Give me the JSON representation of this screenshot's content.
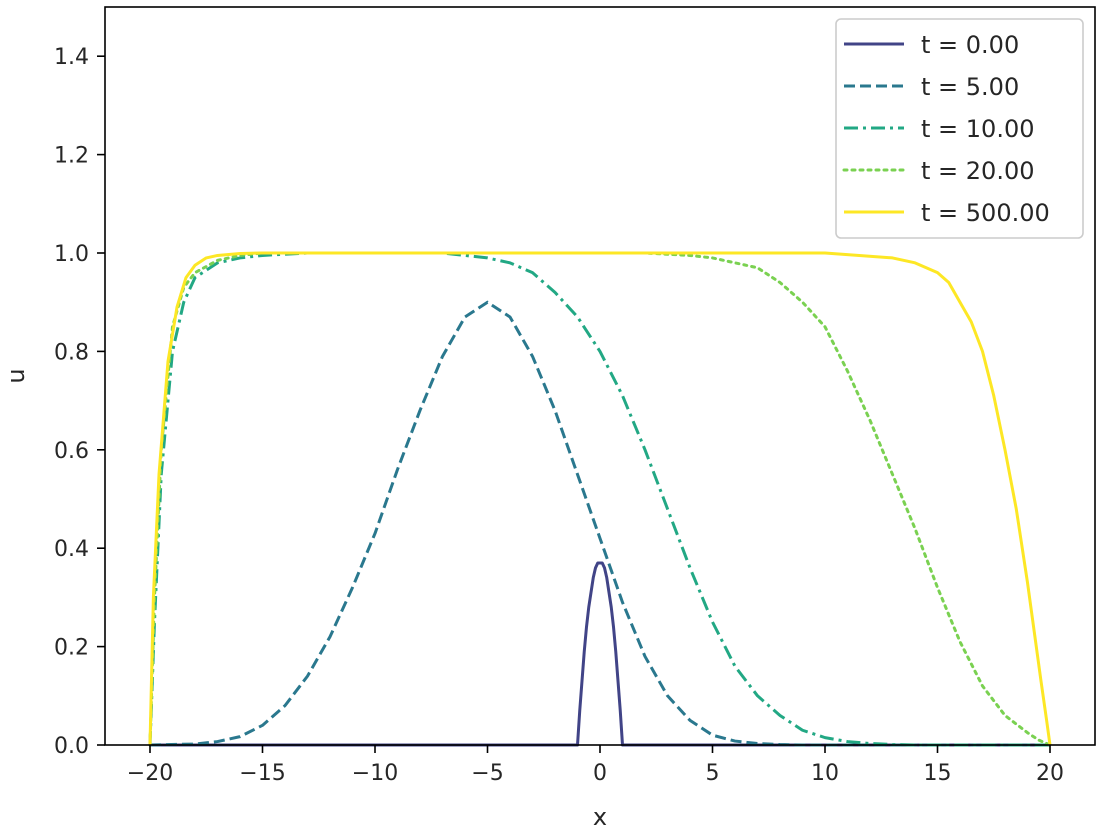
{
  "chart_data": {
    "type": "line",
    "xlabel": "x",
    "ylabel": "u",
    "xlim": [
      -22.0,
      22.0
    ],
    "ylim": [
      0.0,
      1.5
    ],
    "xticks": [
      -20,
      -15,
      -10,
      -5,
      0,
      5,
      10,
      15,
      20
    ],
    "xtick_labels": [
      "−20",
      "−15",
      "−10",
      "−5",
      "0",
      "5",
      "10",
      "15",
      "20"
    ],
    "yticks": [
      0.0,
      0.2,
      0.4,
      0.6,
      0.8,
      1.0,
      1.2,
      1.4
    ],
    "ytick_labels": [
      "0.0",
      "0.2",
      "0.4",
      "0.6",
      "0.8",
      "1.0",
      "1.2",
      "1.4"
    ],
    "grid": false,
    "legend_position": "top-right",
    "series": [
      {
        "name": "t = 0.00",
        "color": "#414487",
        "dash": "solid",
        "x": [
          -20,
          -1.0,
          -0.9,
          -0.8,
          -0.7,
          -0.6,
          -0.5,
          -0.4,
          -0.3,
          -0.2,
          -0.1,
          0.0,
          0.1,
          0.2,
          0.3,
          0.4,
          0.5,
          0.6,
          0.7,
          0.8,
          0.9,
          1.0,
          20
        ],
        "y": [
          0.0,
          0.0,
          0.07,
          0.13,
          0.19,
          0.24,
          0.28,
          0.31,
          0.34,
          0.36,
          0.37,
          0.37,
          0.37,
          0.36,
          0.34,
          0.31,
          0.28,
          0.24,
          0.19,
          0.13,
          0.07,
          0.0,
          0.0
        ]
      },
      {
        "name": "t = 5.00",
        "color": "#2a788e",
        "dash": "dashed",
        "x": [
          -20,
          -18,
          -17,
          -16,
          -15,
          -14,
          -13,
          -12,
          -11,
          -10,
          -9,
          -8,
          -7,
          -6,
          -5,
          -4,
          -3,
          -2,
          -1,
          0,
          1,
          2,
          3,
          4,
          5,
          6,
          7,
          8,
          9,
          10,
          20
        ],
        "y": [
          0.0,
          0.002,
          0.007,
          0.017,
          0.04,
          0.08,
          0.14,
          0.22,
          0.32,
          0.43,
          0.56,
          0.68,
          0.79,
          0.87,
          0.9,
          0.87,
          0.79,
          0.68,
          0.55,
          0.42,
          0.29,
          0.18,
          0.1,
          0.05,
          0.02,
          0.008,
          0.003,
          0.001,
          0.0,
          0.0,
          0.0
        ]
      },
      {
        "name": "t = 10.00",
        "color": "#22a884",
        "dash": "dashdot",
        "x": [
          -20,
          -19.8,
          -19.5,
          -19,
          -18.5,
          -18,
          -17,
          -16,
          -15,
          -13,
          -10,
          -7,
          -5,
          -4,
          -3,
          -2,
          -1,
          0,
          1,
          2,
          3,
          4,
          5,
          6,
          7,
          8,
          9,
          10,
          11,
          12,
          13,
          14,
          20
        ],
        "y": [
          0.0,
          0.25,
          0.55,
          0.8,
          0.9,
          0.95,
          0.98,
          0.99,
          0.995,
          1.0,
          1.0,
          1.0,
          0.99,
          0.98,
          0.96,
          0.92,
          0.87,
          0.8,
          0.71,
          0.6,
          0.48,
          0.36,
          0.25,
          0.16,
          0.1,
          0.06,
          0.03,
          0.015,
          0.007,
          0.003,
          0.001,
          0.0,
          0.0
        ]
      },
      {
        "name": "t = 20.00",
        "color": "#7ad151",
        "dash": "dotted",
        "x": [
          -20,
          -19.8,
          -19.5,
          -19,
          -18.5,
          -18,
          -17,
          -16,
          -15,
          -10,
          -5,
          0,
          2,
          4,
          5,
          6,
          7,
          8,
          9,
          10,
          11,
          12,
          13,
          14,
          15,
          16,
          17,
          18,
          19,
          19.5,
          20
        ],
        "y": [
          0.0,
          0.3,
          0.6,
          0.85,
          0.93,
          0.96,
          0.985,
          0.995,
          1.0,
          1.0,
          1.0,
          1.0,
          1.0,
          0.995,
          0.99,
          0.98,
          0.97,
          0.94,
          0.9,
          0.85,
          0.76,
          0.66,
          0.55,
          0.44,
          0.32,
          0.21,
          0.12,
          0.06,
          0.025,
          0.01,
          0.0
        ]
      },
      {
        "name": "t = 500.00",
        "color": "#fde725",
        "dash": "solid",
        "x": [
          -20,
          -19.85,
          -19.6,
          -19.2,
          -18.8,
          -18.4,
          -18,
          -17.5,
          -17,
          -16,
          -15,
          -10,
          -5,
          0,
          5,
          10,
          13,
          14,
          15,
          15.5,
          16,
          16.5,
          17,
          17.5,
          18,
          18.5,
          19,
          19.3,
          19.6,
          19.85,
          20
        ],
        "y": [
          0.0,
          0.3,
          0.55,
          0.78,
          0.89,
          0.95,
          0.975,
          0.99,
          0.995,
          0.999,
          1.0,
          1.0,
          1.0,
          1.0,
          1.0,
          1.0,
          0.99,
          0.98,
          0.96,
          0.94,
          0.9,
          0.86,
          0.8,
          0.71,
          0.6,
          0.48,
          0.33,
          0.23,
          0.13,
          0.05,
          0.0
        ]
      }
    ]
  }
}
